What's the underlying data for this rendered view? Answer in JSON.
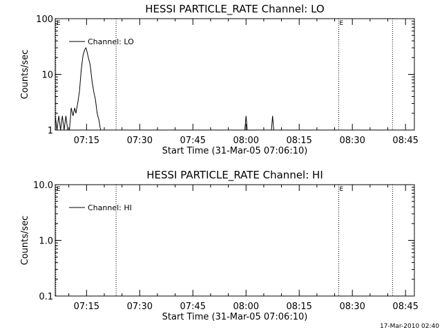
{
  "footer_timestamp": "17-Mar-2010 02:40",
  "colors": {
    "background": "#ffffff",
    "foreground": "#000000"
  },
  "chart_data": [
    {
      "type": "line",
      "title": "HESSI PARTICLE_RATE Channel: LO",
      "xlabel": "Start Time (31-Mar-05 07:06:10)",
      "ylabel": "Counts/sec",
      "yscale": "log",
      "ylim": [
        1,
        100
      ],
      "yticks": [
        {
          "value": 1,
          "label": "1"
        },
        {
          "value": 10,
          "label": "10"
        },
        {
          "value": 100,
          "label": "100"
        }
      ],
      "xlim": [
        "07:06:10",
        "08:47:30"
      ],
      "xticks": [
        "07:15",
        "07:30",
        "07:45",
        "08:00",
        "08:15",
        "08:30",
        "08:45"
      ],
      "legend": {
        "position": "top-left",
        "entries": [
          "Channel: LO"
        ]
      },
      "vlines": [
        {
          "x": "07:06:20",
          "label": "E"
        },
        {
          "x": "07:23:20",
          "label": ""
        },
        {
          "x": "08:26:10",
          "label": "E"
        },
        {
          "x": "08:41:20",
          "label": ""
        }
      ],
      "series": [
        {
          "name": "Channel: LO",
          "x": [
            "07:06:10",
            "07:06:40",
            "07:07:10",
            "07:07:40",
            "07:08:10",
            "07:08:40",
            "07:09:10",
            "07:09:40",
            "07:10:10",
            "07:10:40",
            "07:11:10",
            "07:11:40",
            "07:12:00",
            "07:12:30",
            "07:13:00",
            "07:13:30",
            "07:14:00",
            "07:14:30",
            "07:14:50",
            "07:15:10",
            "07:15:30",
            "07:16:00",
            "07:16:30",
            "07:17:00",
            "07:17:30",
            "07:18:00",
            "07:18:30",
            "07:18:50",
            "07:19:00",
            "07:59:40",
            "08:00:00",
            "08:00:20",
            "08:00:40",
            "08:07:10",
            "08:07:30",
            "08:07:50",
            "08:08:10"
          ],
          "values": [
            1.8,
            1,
            1.8,
            1,
            1.8,
            1,
            1.8,
            1,
            1,
            2.5,
            1.8,
            2.5,
            2,
            3,
            5,
            12,
            22,
            28,
            30,
            25,
            20,
            15,
            8,
            5,
            3.5,
            2,
            1.5,
            1.1,
            1,
            1,
            1.8,
            1,
            1,
            1,
            1.8,
            1,
            1
          ]
        }
      ]
    },
    {
      "type": "line",
      "title": "HESSI PARTICLE_RATE Channel: HI",
      "xlabel": "Start Time (31-Mar-05 07:06:10)",
      "ylabel": "Counts/sec",
      "yscale": "log",
      "ylim": [
        0.1,
        10
      ],
      "yticks": [
        {
          "value": 0.1,
          "label": "0.1"
        },
        {
          "value": 1,
          "label": "1.0"
        },
        {
          "value": 10,
          "label": "10.0"
        }
      ],
      "xlim": [
        "07:06:10",
        "08:47:30"
      ],
      "xticks": [
        "07:15",
        "07:30",
        "07:45",
        "08:00",
        "08:15",
        "08:30",
        "08:45"
      ],
      "legend": {
        "position": "top-left",
        "entries": [
          "Channel: HI"
        ]
      },
      "vlines": [
        {
          "x": "07:06:20",
          "label": "E"
        },
        {
          "x": "07:23:20",
          "label": ""
        },
        {
          "x": "08:26:10",
          "label": "E"
        },
        {
          "x": "08:41:20",
          "label": ""
        }
      ],
      "series": [
        {
          "name": "Channel: HI",
          "x": [],
          "values": []
        }
      ]
    }
  ]
}
